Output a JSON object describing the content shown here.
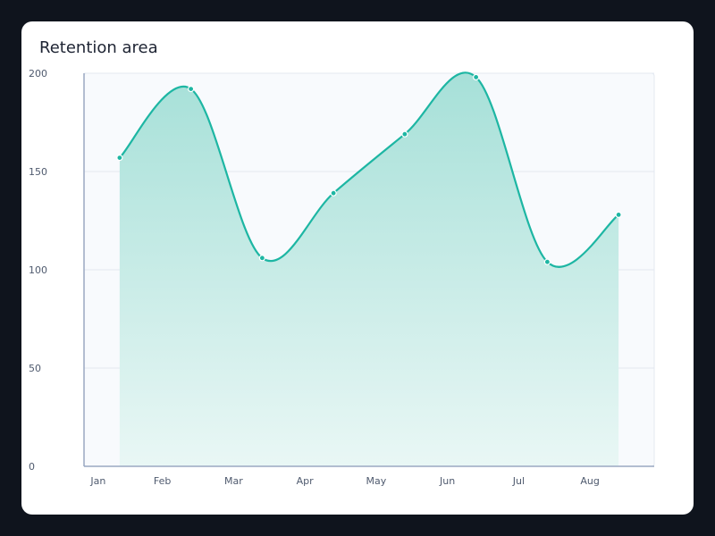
{
  "chart_data": {
    "type": "area",
    "title": "Retention area",
    "xlabel": "",
    "ylabel": "",
    "categories": [
      "Jan",
      "Feb",
      "Mar",
      "Apr",
      "May",
      "Jun",
      "Jul",
      "Aug"
    ],
    "x_positions": [
      0.5,
      1.5,
      2.5,
      3.5,
      4.5,
      5.5,
      6.5,
      7.5
    ],
    "values": [
      157,
      192,
      106,
      139,
      169,
      198,
      104,
      128
    ],
    "ylim": [
      0,
      200
    ],
    "yticks": [
      "0",
      "50",
      "100",
      "150",
      "200"
    ],
    "grid": true,
    "legend": "none"
  },
  "colors": {
    "line": "#1db6a3",
    "fill_top": "#a6e0d8",
    "fill_bottom": "#e9f7f5",
    "plot_bg": "#f8fafd",
    "grid": "#e3e8f0",
    "axis": "#9aa8c2"
  }
}
